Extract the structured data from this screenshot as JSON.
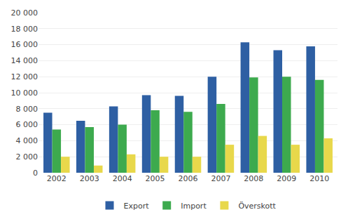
{
  "chart_data": {
    "type": "bar",
    "categories": [
      "2002",
      "2003",
      "2004",
      "2005",
      "2006",
      "2007",
      "2008",
      "2009",
      "2010"
    ],
    "series": [
      {
        "name": "Export",
        "color": "#2E5FA3",
        "values": [
          7500,
          6500,
          8300,
          9700,
          9600,
          12000,
          16300,
          15300,
          15800
        ]
      },
      {
        "name": "Import",
        "color": "#3DAA4E",
        "values": [
          5400,
          5700,
          6000,
          7800,
          7600,
          8600,
          11900,
          12000,
          11600
        ]
      },
      {
        "name": "Överskott",
        "color": "#E8D84B",
        "values": [
          2000,
          900,
          2300,
          2000,
          2000,
          3500,
          4600,
          3500,
          4300
        ]
      }
    ],
    "ylim": [
      0,
      20000
    ],
    "yticks": [
      0,
      {
        "value": 2000,
        "label": "2 000"
      },
      {
        "value": 4000,
        "label": "4 000"
      },
      {
        "value": 6000,
        "label": "6 000"
      },
      {
        "value": 8000,
        "label": "8 000"
      },
      {
        "value": 10000,
        "label": "10 000"
      },
      {
        "value": 12000,
        "label": "12 000"
      },
      {
        "value": 14000,
        "label": "14 000"
      },
      {
        "value": 16000,
        "label": "16 000"
      },
      {
        "value": 18000,
        "label": "18 000"
      },
      {
        "value": 20000,
        "label": "20 000"
      }
    ],
    "grid": true,
    "legend": "bottom"
  }
}
